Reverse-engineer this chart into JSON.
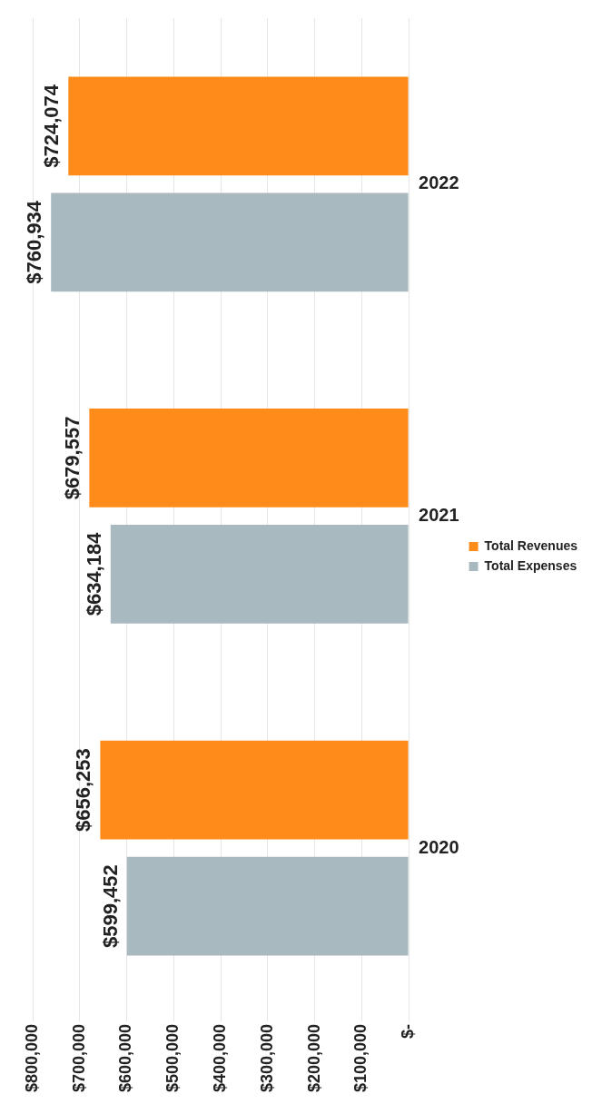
{
  "chart_data": {
    "type": "bar",
    "orientation": "horizontal",
    "categories": [
      "2022",
      "2021",
      "2020"
    ],
    "series": [
      {
        "name": "Total Revenues",
        "color": "#ff8c1a",
        "values": [
          724074,
          679557,
          656253
        ],
        "value_labels": [
          "$724,074",
          "$679,557",
          "$656,253"
        ]
      },
      {
        "name": "Total Expenses",
        "color": "#a9b9c0",
        "values": [
          760934,
          634184,
          599452
        ],
        "value_labels": [
          "$760,934",
          "$634,184",
          "$599,452"
        ]
      }
    ],
    "xlim": [
      800000,
      0
    ],
    "xticks": [
      {
        "value": 0,
        "label": "$-"
      },
      {
        "value": 100000,
        "label": "$100,000"
      },
      {
        "value": 200000,
        "label": "$200,000"
      },
      {
        "value": 300000,
        "label": "$300,000"
      },
      {
        "value": 400000,
        "label": "$400,000"
      },
      {
        "value": 500000,
        "label": "$500,000"
      },
      {
        "value": 600000,
        "label": "$600,000"
      },
      {
        "value": 700000,
        "label": "$700,000"
      },
      {
        "value": 800000,
        "label": "$800,000"
      }
    ],
    "grid": "x",
    "legend": "right"
  }
}
